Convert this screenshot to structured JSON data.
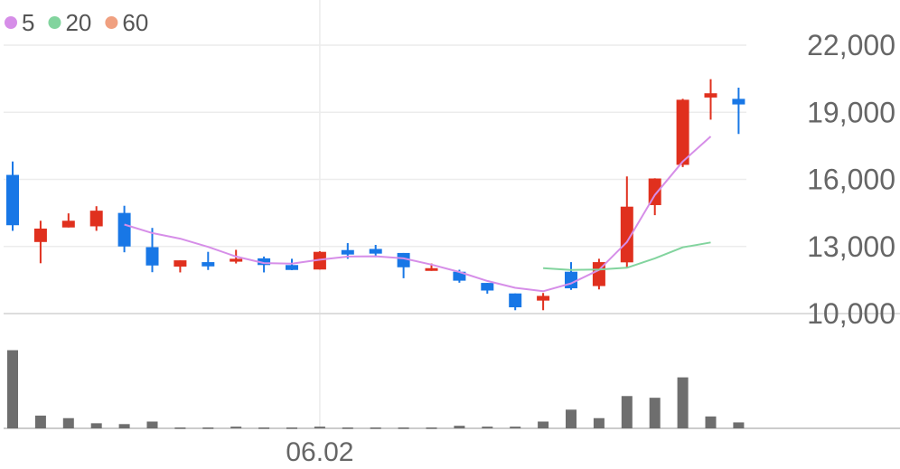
{
  "chart_data": {
    "type": "candlestick",
    "legend": [
      {
        "label": "5",
        "color": "#d68ee8"
      },
      {
        "label": "20",
        "color": "#82d49e"
      },
      {
        "label": "60",
        "color": "#f0a080"
      }
    ],
    "ylim": [
      10000,
      22000
    ],
    "yticks": [
      "22,000",
      "19,000",
      "16,000",
      "13,000",
      "10,000"
    ],
    "ytick_values": [
      22000,
      19000,
      16000,
      13000,
      10000
    ],
    "xtick_label": "06.02",
    "xtick_index": 11,
    "colors": {
      "up": "#e0301e",
      "down": "#1877e6",
      "volume": "#6e6e6e",
      "grid": "#ececec",
      "ma5": "#d68ee8",
      "ma20": "#82d49e"
    },
    "candles": [
      {
        "o": 16200,
        "h": 16800,
        "l": 13700,
        "c": 13950
      },
      {
        "o": 13200,
        "h": 14150,
        "l": 12250,
        "c": 13800
      },
      {
        "o": 13850,
        "h": 14480,
        "l": 13850,
        "c": 14150
      },
      {
        "o": 13900,
        "h": 14800,
        "l": 13700,
        "c": 14600
      },
      {
        "o": 14500,
        "h": 14820,
        "l": 12740,
        "c": 13000
      },
      {
        "o": 12970,
        "h": 13830,
        "l": 11850,
        "c": 12150
      },
      {
        "o": 12100,
        "h": 12380,
        "l": 11840,
        "c": 12380
      },
      {
        "o": 12300,
        "h": 12760,
        "l": 11950,
        "c": 12110
      },
      {
        "o": 12320,
        "h": 12850,
        "l": 12240,
        "c": 12450
      },
      {
        "o": 12470,
        "h": 12550,
        "l": 11840,
        "c": 12170
      },
      {
        "o": 12170,
        "h": 12450,
        "l": 11940,
        "c": 11950
      },
      {
        "o": 11970,
        "h": 12790,
        "l": 11970,
        "c": 12760
      },
      {
        "o": 12840,
        "h": 13150,
        "l": 12450,
        "c": 12640
      },
      {
        "o": 12890,
        "h": 13070,
        "l": 12520,
        "c": 12680
      },
      {
        "o": 12710,
        "h": 12710,
        "l": 11580,
        "c": 12070
      },
      {
        "o": 11970,
        "h": 12240,
        "l": 11910,
        "c": 12030
      },
      {
        "o": 11870,
        "h": 11960,
        "l": 11380,
        "c": 11470
      },
      {
        "o": 11370,
        "h": 11370,
        "l": 10890,
        "c": 11030
      },
      {
        "o": 10900,
        "h": 10900,
        "l": 10150,
        "c": 10280
      },
      {
        "o": 10580,
        "h": 10920,
        "l": 10150,
        "c": 10790
      },
      {
        "o": 11870,
        "h": 12300,
        "l": 11060,
        "c": 11130
      },
      {
        "o": 11230,
        "h": 12450,
        "l": 11080,
        "c": 12300
      },
      {
        "o": 12290,
        "h": 16130,
        "l": 12040,
        "c": 14780
      },
      {
        "o": 14850,
        "h": 16050,
        "l": 14400,
        "c": 16040
      },
      {
        "o": 16650,
        "h": 19600,
        "l": 16550,
        "c": 19560
      },
      {
        "o": 19660,
        "h": 20480,
        "l": 18670,
        "c": 19850
      },
      {
        "o": 19600,
        "h": 20100,
        "l": 18030,
        "c": 19350
      }
    ],
    "ma5": [
      {
        "i": 4,
        "v": 13980
      },
      {
        "i": 5,
        "v": 13600
      },
      {
        "i": 6,
        "v": 13350
      },
      {
        "i": 7,
        "v": 12980
      },
      {
        "i": 8,
        "v": 12550
      },
      {
        "i": 9,
        "v": 12260
      },
      {
        "i": 10,
        "v": 12230
      },
      {
        "i": 11,
        "v": 12410
      },
      {
        "i": 12,
        "v": 12550
      },
      {
        "i": 13,
        "v": 12560
      },
      {
        "i": 14,
        "v": 12470
      },
      {
        "i": 15,
        "v": 12190
      },
      {
        "i": 16,
        "v": 11860
      },
      {
        "i": 17,
        "v": 11460
      },
      {
        "i": 18,
        "v": 11150
      },
      {
        "i": 19,
        "v": 11000
      },
      {
        "i": 20,
        "v": 11350
      },
      {
        "i": 21,
        "v": 11950
      },
      {
        "i": 22,
        "v": 13200
      },
      {
        "i": 23,
        "v": 15300
      },
      {
        "i": 24,
        "v": 16800
      },
      {
        "i": 25,
        "v": 17920
      }
    ],
    "ma20": [
      {
        "i": 19,
        "v": 12030
      },
      {
        "i": 20,
        "v": 11950
      },
      {
        "i": 21,
        "v": 11970
      },
      {
        "i": 22,
        "v": 12050
      },
      {
        "i": 23,
        "v": 12470
      },
      {
        "i": 24,
        "v": 12960
      },
      {
        "i": 25,
        "v": 13180
      }
    ],
    "volume": [
      92,
      15,
      12,
      6,
      5,
      8,
      1,
      1,
      2,
      1,
      1,
      2,
      1,
      1,
      1,
      1,
      3,
      2,
      2,
      8,
      22,
      12,
      38,
      36,
      60,
      14,
      7
    ],
    "volume_max": 100
  }
}
